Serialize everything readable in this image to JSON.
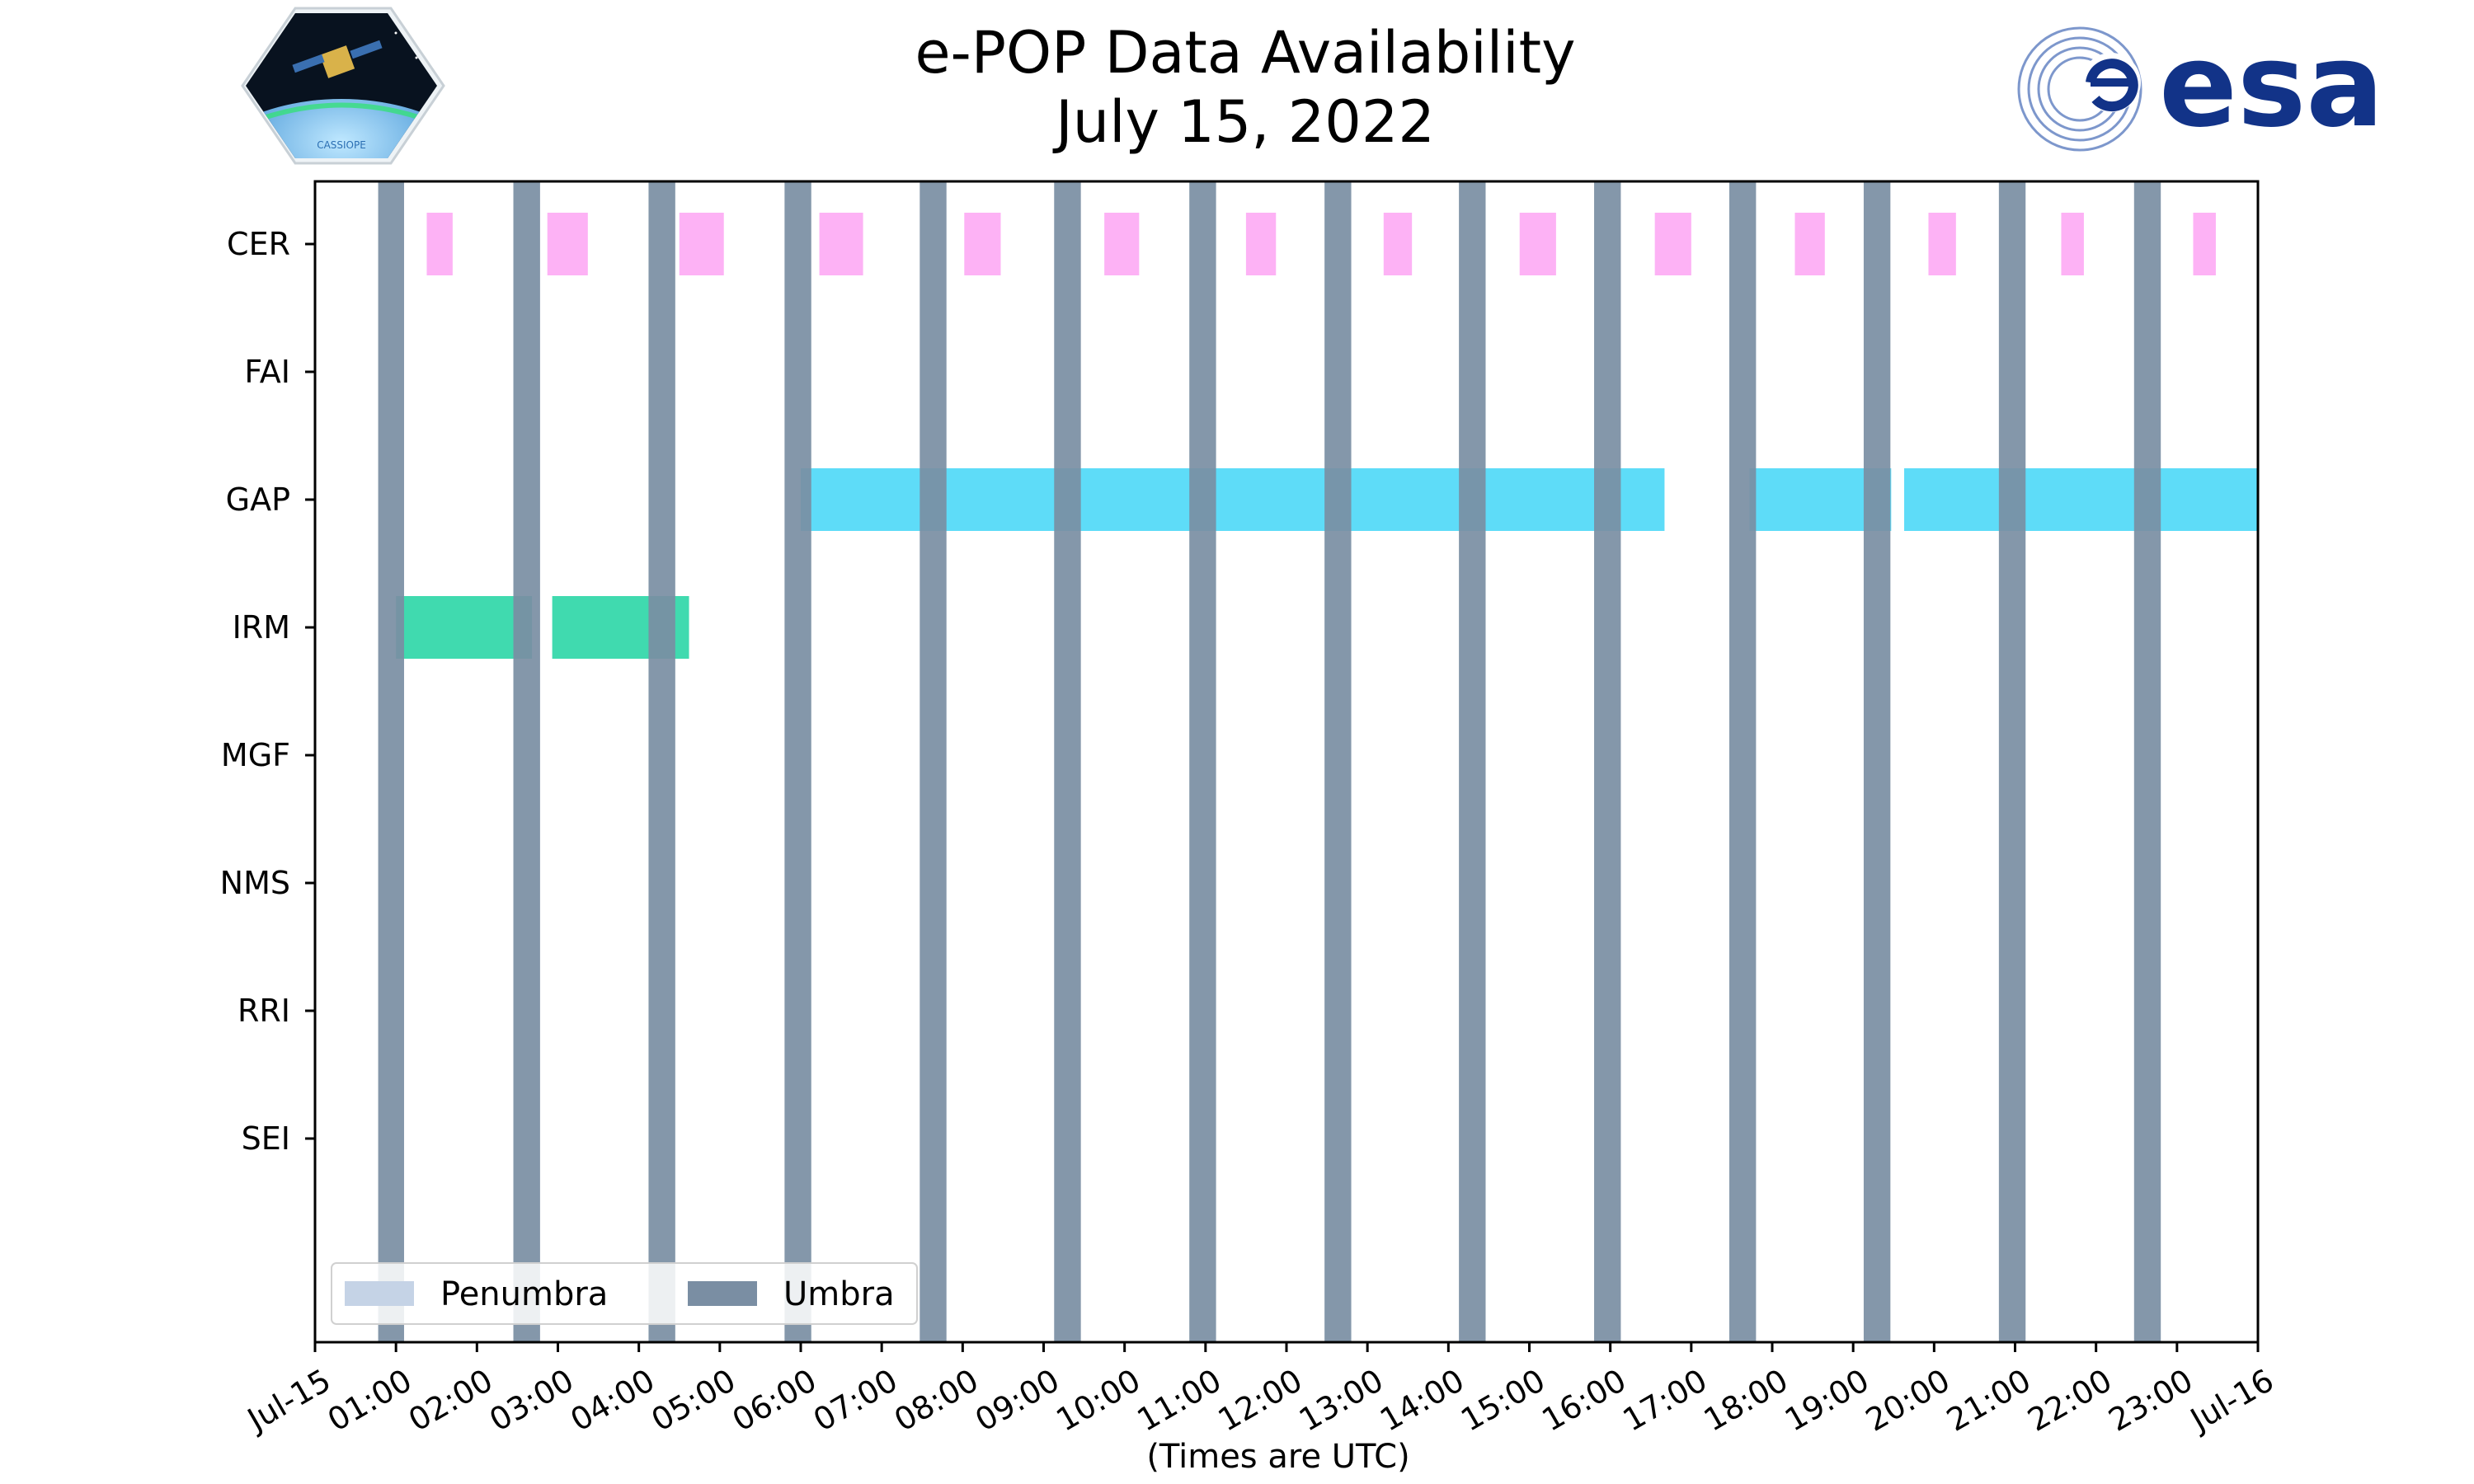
{
  "chart_data": {
    "type": "timeline",
    "title": "e-POP Data Availability",
    "subtitle": "July 15, 2022",
    "xlabel": "(Times are UTC)",
    "x_unit": "hours",
    "xlim": [
      0,
      24
    ],
    "x_ticks": [
      {
        "t": 0,
        "label": "Jul-15"
      },
      {
        "t": 1,
        "label": "01:00"
      },
      {
        "t": 2,
        "label": "02:00"
      },
      {
        "t": 3,
        "label": "03:00"
      },
      {
        "t": 4,
        "label": "04:00"
      },
      {
        "t": 5,
        "label": "05:00"
      },
      {
        "t": 6,
        "label": "06:00"
      },
      {
        "t": 7,
        "label": "07:00"
      },
      {
        "t": 8,
        "label": "08:00"
      },
      {
        "t": 9,
        "label": "09:00"
      },
      {
        "t": 10,
        "label": "10:00"
      },
      {
        "t": 11,
        "label": "11:00"
      },
      {
        "t": 12,
        "label": "12:00"
      },
      {
        "t": 13,
        "label": "13:00"
      },
      {
        "t": 14,
        "label": "14:00"
      },
      {
        "t": 15,
        "label": "15:00"
      },
      {
        "t": 16,
        "label": "16:00"
      },
      {
        "t": 17,
        "label": "17:00"
      },
      {
        "t": 18,
        "label": "18:00"
      },
      {
        "t": 19,
        "label": "19:00"
      },
      {
        "t": 20,
        "label": "20:00"
      },
      {
        "t": 21,
        "label": "21:00"
      },
      {
        "t": 22,
        "label": "22:00"
      },
      {
        "t": 23,
        "label": "23:00"
      },
      {
        "t": 24,
        "label": "Jul-16"
      }
    ],
    "instruments": [
      "CER",
      "FAI",
      "GAP",
      "IRM",
      "MGF",
      "NMS",
      "RRI",
      "SEI"
    ],
    "legend": {
      "location": "lower-left",
      "entries": [
        {
          "label": "Penumbra",
          "color": "#c5d3e6"
        },
        {
          "label": "Umbra",
          "color": "#7a8ea3"
        }
      ]
    },
    "umbra_color": "#7a8ea3",
    "umbra": [
      [
        0.78,
        1.1
      ],
      [
        2.45,
        2.78
      ],
      [
        4.12,
        4.45
      ],
      [
        5.8,
        6.13
      ],
      [
        7.47,
        7.8
      ],
      [
        9.13,
        9.46
      ],
      [
        10.8,
        11.13
      ],
      [
        12.47,
        12.8
      ],
      [
        14.13,
        14.46
      ],
      [
        15.8,
        16.13
      ],
      [
        17.47,
        17.8
      ],
      [
        19.13,
        19.46
      ],
      [
        20.8,
        21.13
      ],
      [
        22.47,
        22.8
      ]
    ],
    "series": [
      {
        "instrument": "CER",
        "color": "#fdaaf4",
        "intervals": [
          [
            1.38,
            1.7
          ],
          [
            2.87,
            3.37
          ],
          [
            4.5,
            5.05
          ],
          [
            6.23,
            6.77
          ],
          [
            8.02,
            8.47
          ],
          [
            9.75,
            10.18
          ],
          [
            11.5,
            11.87
          ],
          [
            13.2,
            13.55
          ],
          [
            14.88,
            15.33
          ],
          [
            16.55,
            17.0
          ],
          [
            18.28,
            18.65
          ],
          [
            19.93,
            20.27
          ],
          [
            21.57,
            21.85
          ],
          [
            23.2,
            23.48
          ]
        ]
      },
      {
        "instrument": "FAI",
        "color": "#fdaaf4",
        "intervals": []
      },
      {
        "instrument": "GAP",
        "color": "#4dd8f7",
        "intervals": [
          [
            6.0,
            16.67
          ],
          [
            17.72,
            19.47
          ],
          [
            19.63,
            24.0
          ]
        ]
      },
      {
        "instrument": "IRM",
        "color": "#2bd6a6",
        "intervals": [
          [
            1.0,
            2.68
          ],
          [
            2.93,
            4.62
          ]
        ]
      },
      {
        "instrument": "MGF",
        "color": "#888888",
        "intervals": []
      },
      {
        "instrument": "NMS",
        "color": "#888888",
        "intervals": []
      },
      {
        "instrument": "RRI",
        "color": "#888888",
        "intervals": []
      },
      {
        "instrument": "SEI",
        "color": "#888888",
        "intervals": []
      }
    ]
  },
  "logos": {
    "cassiope_text": "CASSIOPE",
    "esa_text": "esa",
    "esa_color": "#123388"
  }
}
